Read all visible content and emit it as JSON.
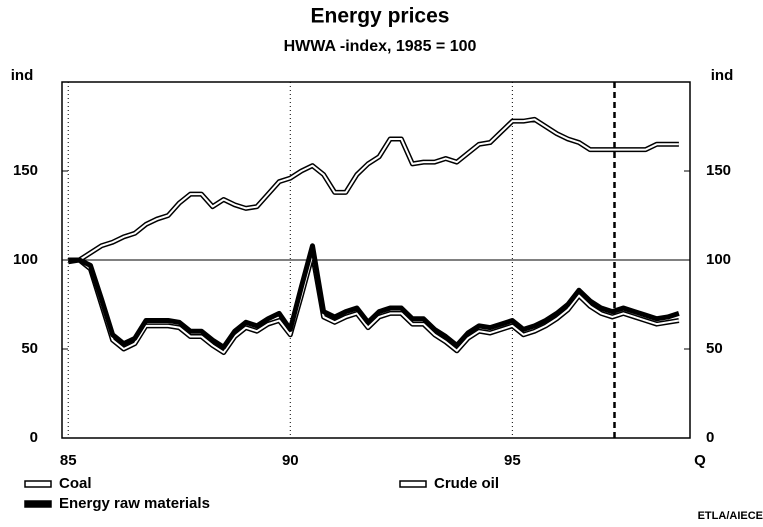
{
  "chart_data": {
    "type": "line",
    "title": "Energy prices",
    "subtitle": "HWWA -index, 1985 = 100",
    "y_label": "ind",
    "y2_label": "ind",
    "x_label": "Q",
    "source": "ETLA/AIECE",
    "x": [
      85,
      85.25,
      85.5,
      85.75,
      86,
      86.25,
      86.5,
      86.75,
      87,
      87.25,
      87.5,
      87.75,
      88,
      88.25,
      88.5,
      88.75,
      89,
      89.25,
      89.5,
      89.75,
      90,
      90.25,
      90.5,
      90.75,
      91,
      91.25,
      91.5,
      91.75,
      92,
      92.25,
      92.5,
      92.75,
      93,
      93.25,
      93.5,
      93.75,
      94,
      94.25,
      94.5,
      94.75,
      95,
      95.25,
      95.5,
      95.75,
      96,
      96.25,
      96.5,
      96.75,
      97,
      97.25,
      97.5,
      97.75,
      98,
      98.25,
      98.5,
      98.75
    ],
    "series": [
      {
        "name": "Coal",
        "color": "#ffffff",
        "outline": true,
        "values": [
          99,
          100,
          104,
          108,
          110,
          113,
          115,
          120,
          123,
          125,
          132,
          137,
          137,
          130,
          134,
          131,
          129,
          130,
          137,
          144,
          146,
          150,
          153,
          148,
          138,
          138,
          148,
          154,
          158,
          168,
          168,
          154,
          155,
          155,
          157,
          155,
          160,
          165,
          166,
          172,
          178,
          178,
          179,
          175,
          171,
          168,
          166,
          162,
          162,
          162,
          162,
          162,
          162,
          165,
          165,
          165
        ]
      },
      {
        "name": "Crude oil",
        "color": "#ffffff",
        "outline": true,
        "values": [
          100,
          100,
          95,
          75,
          55,
          50,
          53,
          63,
          63,
          63,
          62,
          57,
          57,
          52,
          48,
          57,
          62,
          60,
          64,
          66,
          58,
          80,
          103,
          68,
          65,
          68,
          70,
          62,
          68,
          70,
          70,
          64,
          64,
          58,
          54,
          49,
          56,
          60,
          59,
          61,
          63,
          58,
          60,
          63,
          67,
          72,
          80,
          74,
          70,
          68,
          70,
          68,
          66,
          64,
          65,
          66
        ]
      },
      {
        "name": "Energy raw materials",
        "color": "#000000",
        "outline": false,
        "values": [
          100,
          100,
          97,
          78,
          58,
          53,
          56,
          66,
          66,
          66,
          65,
          60,
          60,
          55,
          51,
          60,
          65,
          63,
          67,
          70,
          61,
          85,
          108,
          71,
          68,
          71,
          73,
          65,
          71,
          73,
          73,
          67,
          67,
          61,
          57,
          52,
          59,
          63,
          62,
          64,
          66,
          61,
          63,
          66,
          70,
          75,
          83,
          77,
          73,
          71,
          73,
          71,
          69,
          67,
          68,
          70
        ]
      }
    ],
    "xlim": [
      84.86,
      99
    ],
    "xticks": [
      85,
      90,
      95
    ],
    "ylim": [
      0,
      200
    ],
    "yticks": [
      0,
      50,
      100,
      150
    ],
    "y2lim": [
      0,
      200
    ],
    "y2ticks": [
      0,
      50,
      100,
      150
    ],
    "hline": 100,
    "forecast_line": 97.3,
    "grid": "x-dotted"
  }
}
